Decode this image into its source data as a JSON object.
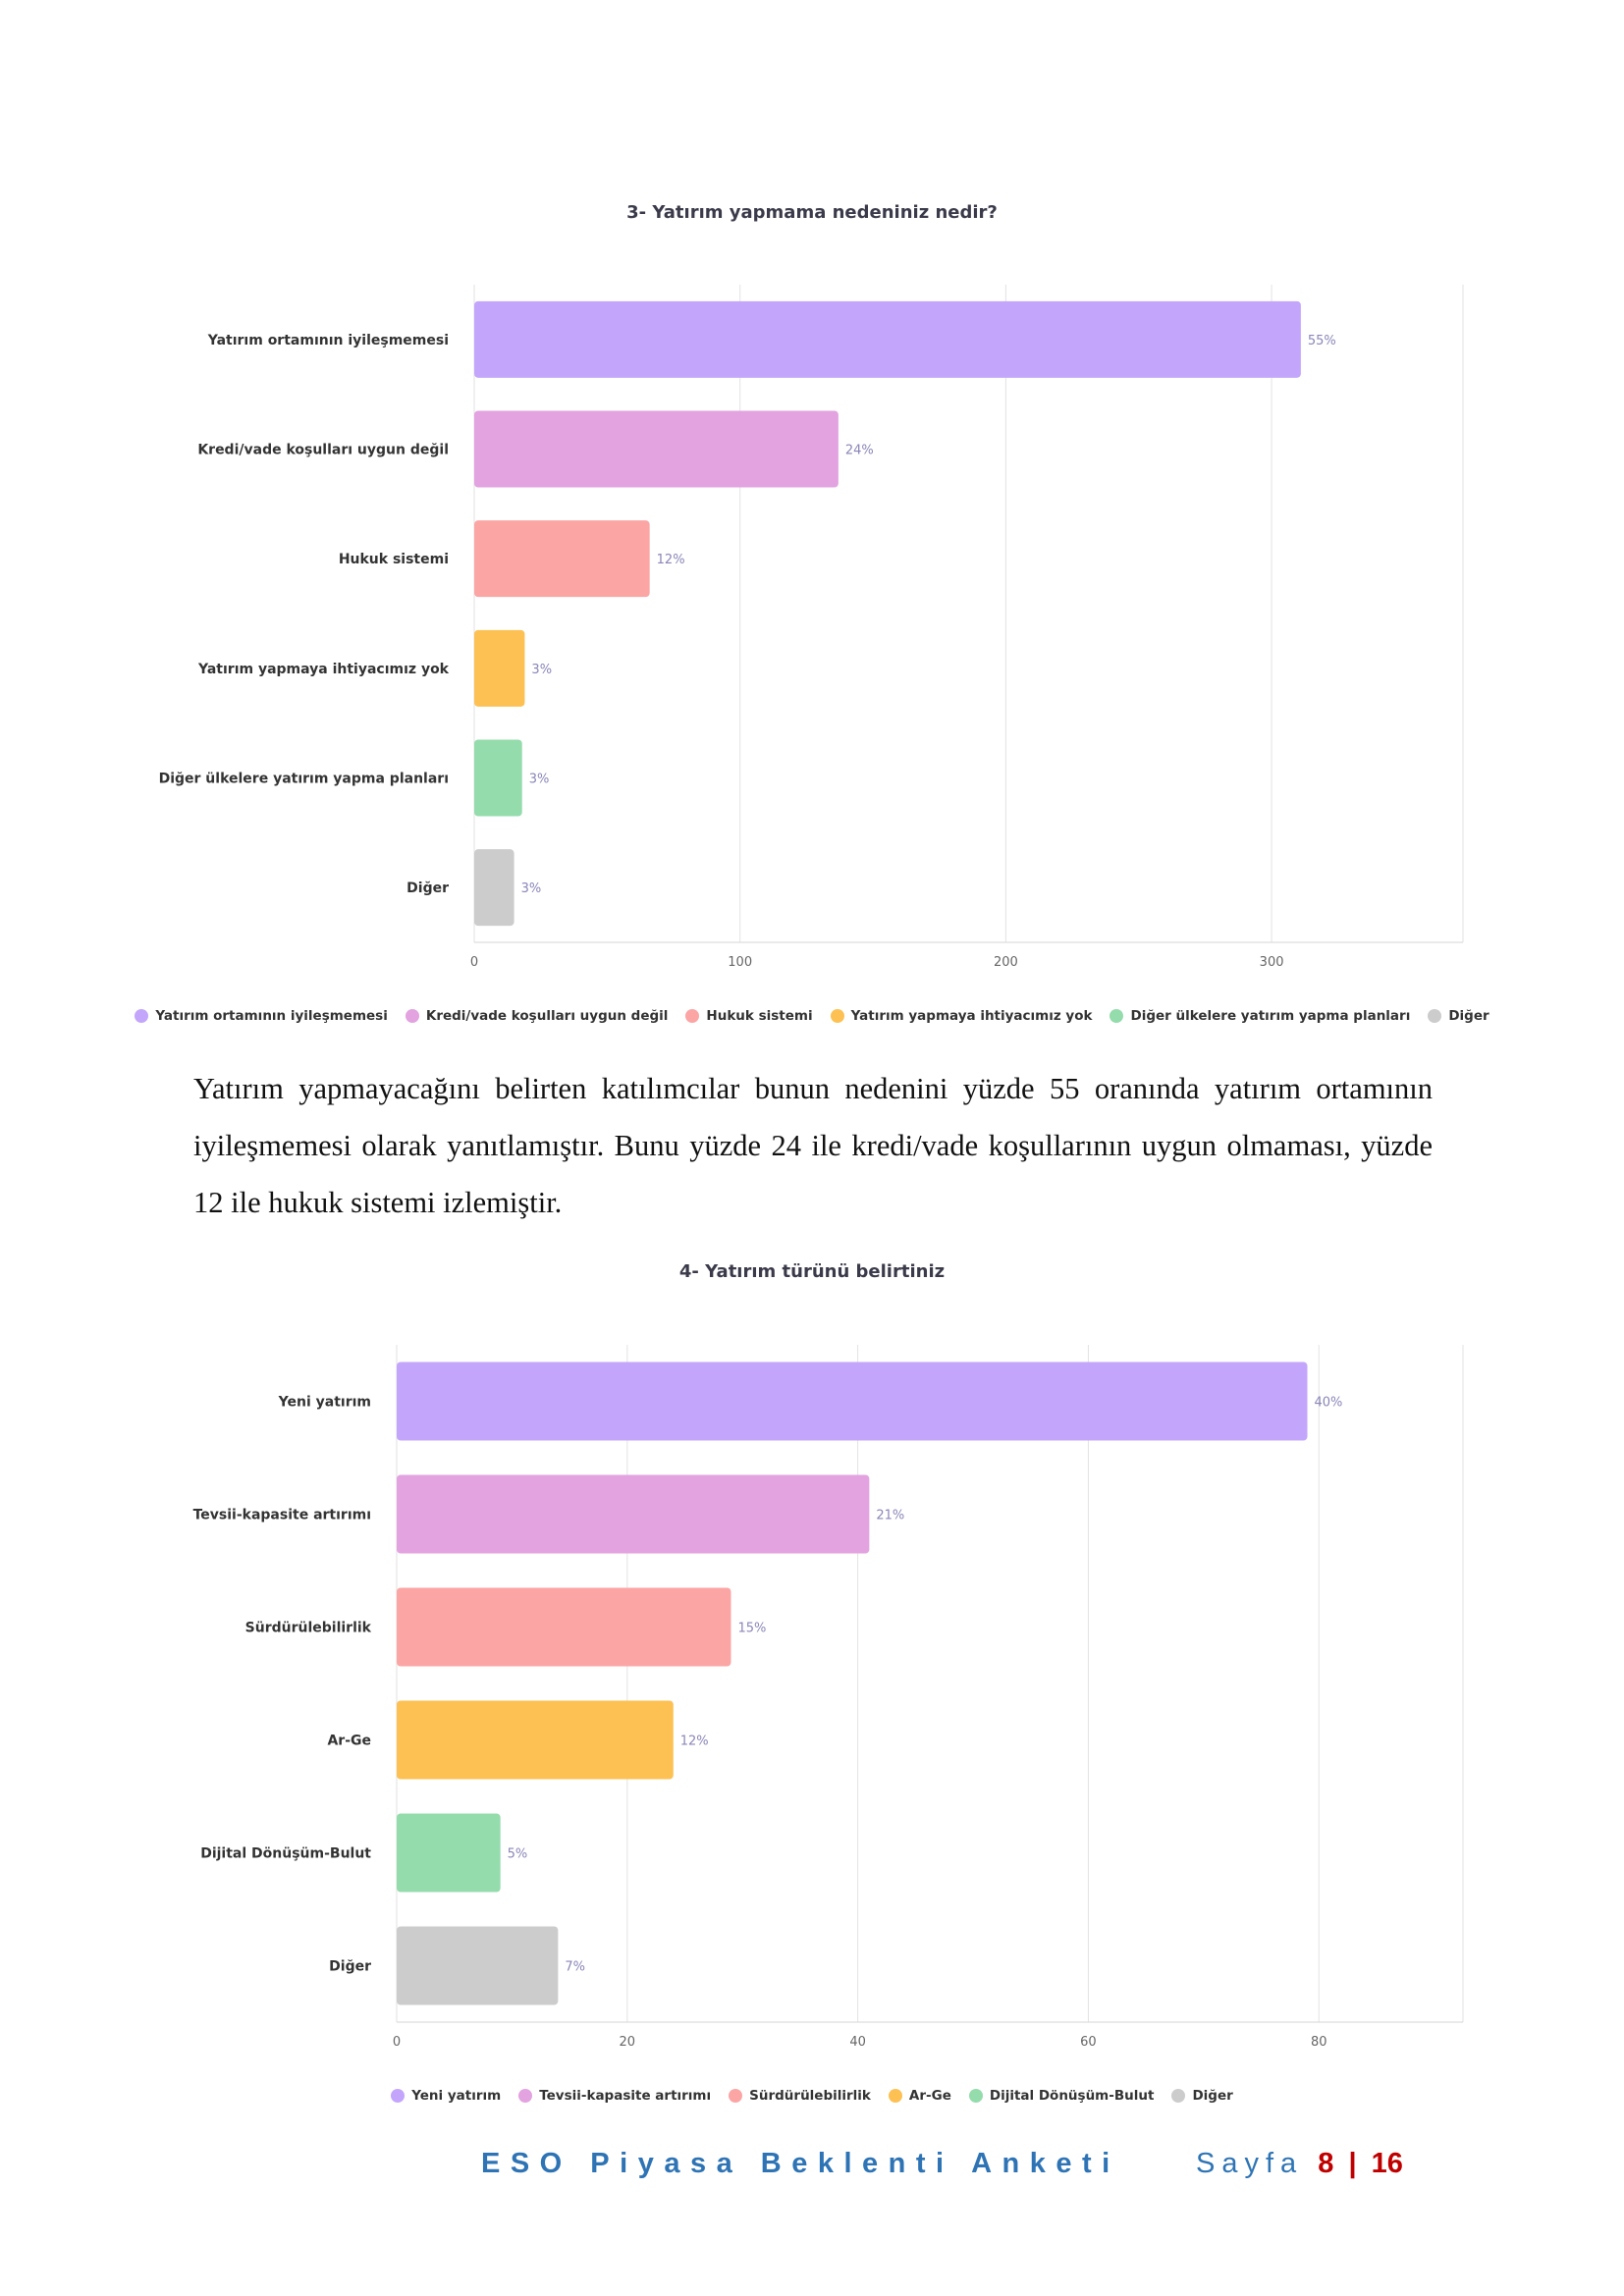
{
  "chart_data": [
    {
      "type": "bar",
      "orientation": "horizontal",
      "title": "3- Yatırım yapmama nedeniniz nedir?",
      "categories": [
        "Yatırım ortamının iyileşmemesi",
        "Kredi/vade koşulları uygun değil",
        "Hukuk sistemi",
        "Yatırım yapmaya ihtiyacımız yok",
        "Diğer ülkelere yatırım yapma planları",
        "Diğer"
      ],
      "values": [
        311,
        137,
        66,
        19,
        18,
        15
      ],
      "data_labels": [
        "55%",
        "24%",
        "12%",
        "3%",
        "3%",
        "3%"
      ],
      "colors": [
        "#c3a6fb",
        "#e3a2e0",
        "#fca5a5",
        "#fdc153",
        "#94dcac",
        "#cccccc"
      ],
      "xticks": [
        "0",
        "100",
        "200",
        "300"
      ],
      "xlim": [
        0,
        372
      ],
      "grid": true,
      "legend": [
        "Yatırım ortamının iyileşmemesi",
        "Kredi/vade koşulları uygun değil",
        "Hukuk sistemi",
        "Yatırım yapmaya ihtiyacımız yok",
        "Diğer ülkelere yatırım yapma planları",
        "Diğer"
      ],
      "legend_position": "bottom"
    },
    {
      "type": "bar",
      "orientation": "horizontal",
      "title": "4- Yatırım türünü belirtiniz",
      "categories": [
        "Yeni yatırım",
        "Tevsii-kapasite artırımı",
        "Sürdürülebilirlik",
        "Ar-Ge",
        "Dijital Dönüşüm-Bulut",
        "Diğer"
      ],
      "values": [
        79,
        41,
        29,
        24,
        9,
        14
      ],
      "data_labels": [
        "40%",
        "21%",
        "15%",
        "12%",
        "5%",
        "7%"
      ],
      "colors": [
        "#c3a6fb",
        "#e3a2e0",
        "#fca5a5",
        "#fdc153",
        "#94dcac",
        "#cccccc"
      ],
      "xticks": [
        "0",
        "20",
        "40",
        "60",
        "80"
      ],
      "xlim": [
        0,
        92.5
      ],
      "grid": true,
      "legend": [
        "Yeni yatırım",
        "Tevsii-kapasite artırımı",
        "Sürdürülebilirlik",
        "Ar-Ge",
        "Dijital Dönüşüm-Bulut",
        "Diğer"
      ],
      "legend_position": "bottom"
    }
  ],
  "paragraph": "Yatırım yapmayacağını belirten katılımcılar bunun nedenini yüzde 55 oranında yatırım ortamının iyileşmemesi olarak yanıtlamıştır. Bunu yüzde 24 ile kredi/vade koşullarının uygun olmaması, yüzde 12 ile hukuk sistemi izlemiştir.",
  "footer": {
    "title": "ESO Piyasa Beklenti Anketi",
    "page_word": "Sayfa",
    "page_current": "8",
    "separator": "|",
    "page_total": "16"
  }
}
